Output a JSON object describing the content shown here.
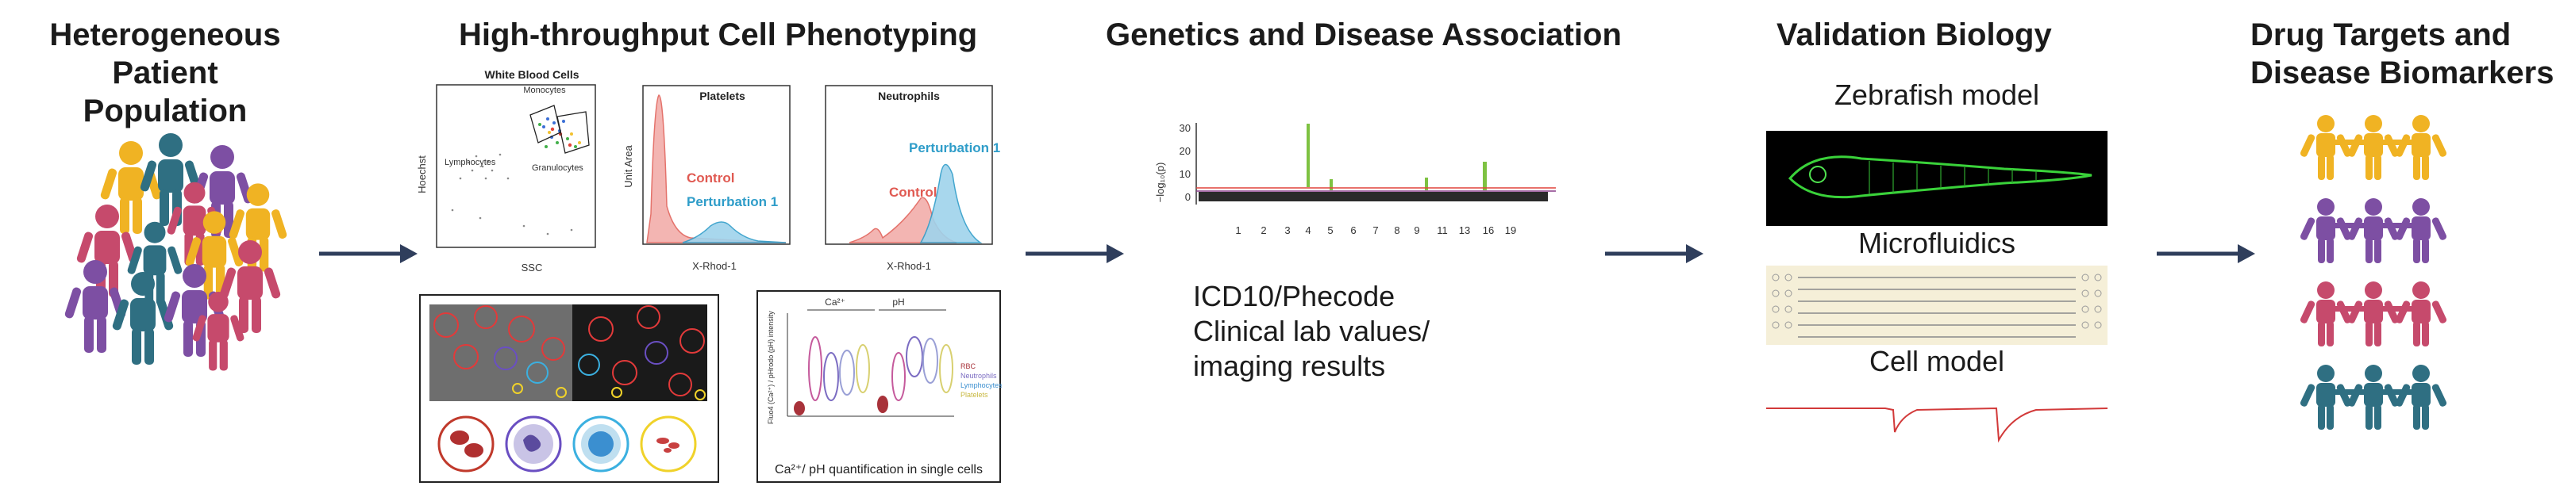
{
  "stages": {
    "patients": {
      "title_l1": "Heterogeneous Patient",
      "title_l2": "Population"
    },
    "phenotyping": {
      "title": "High-throughput Cell Phenotyping"
    },
    "genetics": {
      "title": "Genetics and Disease Association"
    },
    "validation": {
      "title": "Validation Biology"
    },
    "targets": {
      "title_l1": "Drug Targets and",
      "title_l2": "Disease Biomarkers"
    }
  },
  "facs": {
    "wbc": {
      "title": "White Blood Cells",
      "ylabel": "Hoechst",
      "xlabel": "SSC",
      "gates": {
        "monocytes": "Monocytes",
        "lymphocytes": "Lymphocytes",
        "granulocytes": "Granulocytes"
      }
    },
    "platelets": {
      "title": "Platelets",
      "ylabel": "Unit Area",
      "xlabel": "X-Rhod-1",
      "control": "Control",
      "perturbation": "Perturbation 1"
    },
    "neutrophils": {
      "title": "Neutrophils",
      "xlabel": "X-Rhod-1",
      "control": "Control",
      "perturbation": "Perturbation 1"
    }
  },
  "violin": {
    "group1": "Ca²⁺",
    "group2": "pH",
    "ylabel": "Fluo4 (Ca²⁺) / pHrodo (pH) intensity",
    "legend": [
      "RBC",
      "Neutrophils",
      "Lymphocytes",
      "Platelets"
    ],
    "caption": "Ca²⁺/ pH quantification in single cells"
  },
  "manhattan": {
    "ylabel": "−log₁₀(p)",
    "yticks": [
      "30",
      "20",
      "10",
      "0"
    ],
    "chromosomes": [
      "1",
      "2",
      "3",
      "4",
      "5",
      "6",
      "7",
      "8",
      "9",
      "11",
      "13",
      "16",
      "19"
    ]
  },
  "genetics_text": [
    "ICD10/Phecode",
    "Clinical lab values/",
    "imaging results"
  ],
  "validation": {
    "zebrafish": "Zebrafish model",
    "microfluidics": "Microfluidics",
    "cell_model": "Cell model"
  },
  "colors": {
    "yellow": "#f0b323",
    "navy": "#4b4f86",
    "purple": "#7d4fa3",
    "pink": "#c64a6c",
    "teal": "#2f6f82",
    "arrow": "#2f3e5c",
    "green": "#7ec242"
  }
}
